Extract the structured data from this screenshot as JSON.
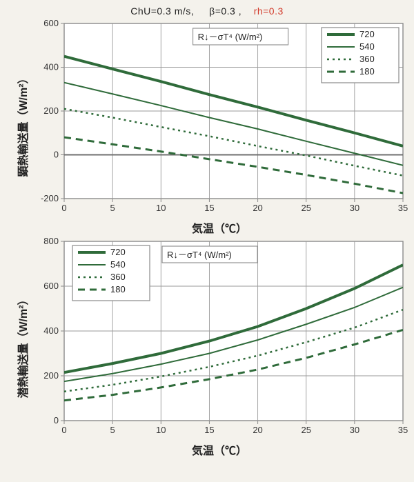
{
  "header": {
    "chu": "ChU=0.3 m/s,",
    "beta": "β=0.3 ,",
    "rh": "rh=0.3"
  },
  "radiation_label": "R↓－σT⁴ (W/m²)",
  "legend_items": [
    "720",
    "540",
    "360",
    "180"
  ],
  "series_colors": {
    "720": "#2f6b3a",
    "540": "#2f6b3a",
    "360": "#2f6b3a",
    "180": "#2f6b3a"
  },
  "line_styles": {
    "720": {
      "width": 4.0,
      "dash": null
    },
    "540": {
      "width": 2.0,
      "dash": null
    },
    "360": {
      "width": 2.5,
      "dash": "3 5"
    },
    "180": {
      "width": 3.0,
      "dash": "10 7"
    }
  },
  "plot_style": {
    "plot_bg": "#ffffff",
    "page_bg": "#f4f2ec",
    "outer_border": "#8a8a8a",
    "grid_color": "#9a9a9a",
    "grid_width": 0.9,
    "tick_fontsize": 13,
    "tick_color": "#333333",
    "axis_label_fontsize": 16,
    "zero_line_color": "#6f6f6f",
    "zero_line_width": 2.0,
    "legend_bg": "#ffffff",
    "legend_border": "#8a8a8a",
    "legend_fontsize": 13
  },
  "top_chart": {
    "ylabel": "顕熱輸送量（W/m²）",
    "xlabel": "気温（℃）",
    "xmin": 0,
    "xmax": 35,
    "xtick_step": 5,
    "ymin": -200,
    "ymax": 600,
    "ytick_step": 200,
    "series": {
      "720": [
        [
          0,
          450
        ],
        [
          5,
          392
        ],
        [
          10,
          335
        ],
        [
          15,
          275
        ],
        [
          20,
          218
        ],
        [
          25,
          158
        ],
        [
          30,
          100
        ],
        [
          35,
          40
        ]
      ],
      "540": [
        [
          0,
          330
        ],
        [
          5,
          278
        ],
        [
          10,
          225
        ],
        [
          15,
          170
        ],
        [
          20,
          118
        ],
        [
          25,
          62
        ],
        [
          30,
          7
        ],
        [
          35,
          -48
        ]
      ],
      "360": [
        [
          0,
          210
        ],
        [
          5,
          170
        ],
        [
          10,
          127
        ],
        [
          15,
          85
        ],
        [
          20,
          40
        ],
        [
          25,
          -3
        ],
        [
          30,
          -50
        ],
        [
          35,
          -95
        ]
      ],
      "180": [
        [
          0,
          80
        ],
        [
          5,
          48
        ],
        [
          10,
          15
        ],
        [
          15,
          -20
        ],
        [
          20,
          -55
        ],
        [
          25,
          -92
        ],
        [
          30,
          -132
        ],
        [
          35,
          -175
        ]
      ]
    },
    "legend_pos": "top-right",
    "annotation_pos": "mid"
  },
  "bottom_chart": {
    "ylabel": "潜熱輸送量（W/m²）",
    "xlabel": "気温（℃）",
    "xmin": 0,
    "xmax": 35,
    "xtick_step": 5,
    "ymin": 0,
    "ymax": 800,
    "ytick_step": 200,
    "series": {
      "720": [
        [
          0,
          215
        ],
        [
          5,
          255
        ],
        [
          10,
          300
        ],
        [
          15,
          355
        ],
        [
          20,
          420
        ],
        [
          25,
          500
        ],
        [
          30,
          590
        ],
        [
          35,
          695
        ]
      ],
      "540": [
        [
          0,
          175
        ],
        [
          5,
          210
        ],
        [
          10,
          252
        ],
        [
          15,
          300
        ],
        [
          20,
          360
        ],
        [
          25,
          430
        ],
        [
          30,
          505
        ],
        [
          35,
          595
        ]
      ],
      "360": [
        [
          0,
          130
        ],
        [
          5,
          160
        ],
        [
          10,
          197
        ],
        [
          15,
          240
        ],
        [
          20,
          290
        ],
        [
          25,
          350
        ],
        [
          30,
          415
        ],
        [
          35,
          495
        ]
      ],
      "180": [
        [
          0,
          90
        ],
        [
          5,
          115
        ],
        [
          10,
          148
        ],
        [
          15,
          185
        ],
        [
          20,
          228
        ],
        [
          25,
          280
        ],
        [
          30,
          340
        ],
        [
          35,
          405
        ]
      ]
    },
    "legend_pos": "top-left",
    "annotation_pos": "right-of-legend"
  }
}
